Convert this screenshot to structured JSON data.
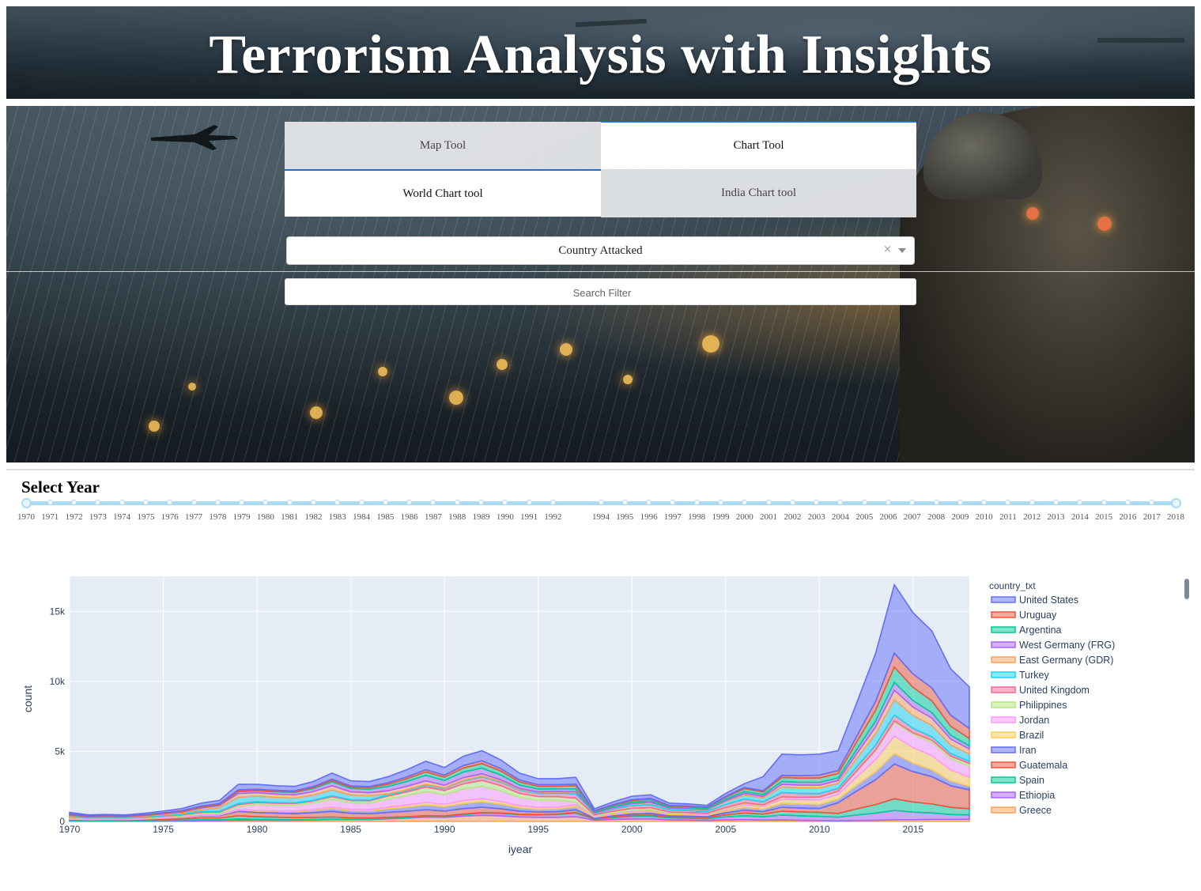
{
  "header": {
    "title": "Terrorism Analysis with Insights"
  },
  "tabs_primary": [
    {
      "label": "Map Tool",
      "active": false
    },
    {
      "label": "Chart Tool",
      "active": true
    }
  ],
  "tabs_secondary": [
    {
      "label": "World Chart tool",
      "active": true
    },
    {
      "label": "India Chart tool",
      "active": false
    }
  ],
  "dropdown": {
    "value": "Country Attacked",
    "clear_label": "×"
  },
  "search": {
    "placeholder": "Search Filter"
  },
  "slider": {
    "title": "Select Year",
    "range": [
      1970,
      2018
    ],
    "years": [
      "1970",
      "1971",
      "1972",
      "1973",
      "1974",
      "1975",
      "1976",
      "1977",
      "1978",
      "1979",
      "1980",
      "1981",
      "1982",
      "1983",
      "1984",
      "1985",
      "1986",
      "1987",
      "1988",
      "1989",
      "1990",
      "1991",
      "1992",
      "1994",
      "1995",
      "1996",
      "1997",
      "1998",
      "1999",
      "2000",
      "2001",
      "2002",
      "2003",
      "2004",
      "2005",
      "2006",
      "2007",
      "2008",
      "2009",
      "2010",
      "2011",
      "2012",
      "2013",
      "2014",
      "2015",
      "2016",
      "2017",
      "2018"
    ]
  },
  "colors": {
    "tab_accent": "#1f6ed4",
    "slider": "#abdbf0",
    "plot_bg": "#e5ecf6"
  },
  "chart_data": {
    "type": "area",
    "xlabel": "iyear",
    "ylabel": "count",
    "xlim": [
      1970,
      2018
    ],
    "ylim": [
      0,
      17500
    ],
    "x_ticks": [
      "1970",
      "1975",
      "1980",
      "1985",
      "1990",
      "1995",
      "2000",
      "2005",
      "2010",
      "2015"
    ],
    "y_ticks": [
      "0",
      "5k",
      "10k",
      "15k"
    ],
    "legend_title": "country_txt",
    "legend_position": "right",
    "x": [
      1970,
      1971,
      1972,
      1973,
      1974,
      1975,
      1976,
      1977,
      1978,
      1979,
      1980,
      1981,
      1982,
      1983,
      1984,
      1985,
      1986,
      1987,
      1988,
      1989,
      1990,
      1991,
      1992,
      1993,
      1994,
      1995,
      1996,
      1997,
      1998,
      1999,
      2000,
      2001,
      2002,
      2003,
      2004,
      2005,
      2006,
      2007,
      2008,
      2009,
      2010,
      2011,
      2012,
      2013,
      2014,
      2015,
      2016,
      2017,
      2018
    ],
    "total": [
      650,
      470,
      500,
      470,
      580,
      740,
      920,
      1300,
      1500,
      2650,
      2650,
      2550,
      2500,
      2850,
      3450,
      2900,
      2850,
      3200,
      3700,
      4300,
      3850,
      4650,
      5050,
      4400,
      3450,
      3050,
      3050,
      3150,
      900,
      1400,
      1800,
      1900,
      1300,
      1250,
      1150,
      2000,
      2700,
      3200,
      4800,
      4750,
      4800,
      5050,
      8500,
      12000,
      16900,
      14900,
      13600,
      10900,
      9600
    ],
    "series": [
      {
        "name": "United States",
        "color": "#636efa"
      },
      {
        "name": "Uruguay",
        "color": "#ef553b"
      },
      {
        "name": "Argentina",
        "color": "#00cc96"
      },
      {
        "name": "West Germany (FRG)",
        "color": "#ab63fa"
      },
      {
        "name": "East Germany (GDR)",
        "color": "#ffa15a"
      },
      {
        "name": "Turkey",
        "color": "#19d3f3"
      },
      {
        "name": "United Kingdom",
        "color": "#ff6692"
      },
      {
        "name": "Philippines",
        "color": "#b6e880"
      },
      {
        "name": "Jordan",
        "color": "#ff97ff"
      },
      {
        "name": "Brazil",
        "color": "#fecb52"
      },
      {
        "name": "Iran",
        "color": "#636efa"
      },
      {
        "name": "Guatemala",
        "color": "#ef553b"
      },
      {
        "name": "Spain",
        "color": "#00cc96"
      },
      {
        "name": "Ethiopia",
        "color": "#ab63fa"
      },
      {
        "name": "Greece",
        "color": "#ffa15a"
      }
    ]
  }
}
